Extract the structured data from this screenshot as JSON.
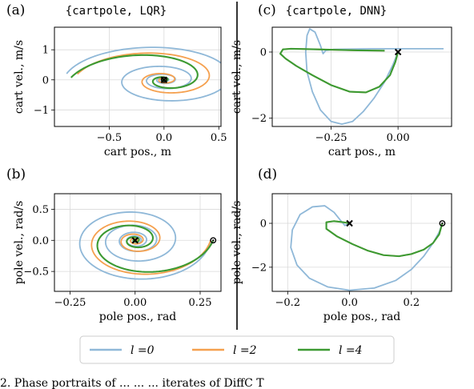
{
  "caption": "2. Phase portraits of ... ... ... iterates of DiffC T",
  "legend": {
    "placement": "bottom-center",
    "entries": [
      {
        "label": "l =0",
        "color": "#8fb8d8"
      },
      {
        "label": "l =2",
        "color": "#f5a04e"
      },
      {
        "label": "l =4",
        "color": "#3c9a32"
      }
    ]
  },
  "chart_data": [
    {
      "id": "a",
      "type": "line",
      "panel_label": "(a)",
      "title": "{cartpole, LQR}",
      "xlabel": "cart pos., m",
      "ylabel": "cart vel., m/s",
      "xlim": [
        -1.0,
        0.52
      ],
      "ylim": [
        -1.55,
        1.75
      ],
      "xticks": [
        -0.5,
        0.0,
        0.5
      ],
      "xtick_labels": [
        "−0.5",
        "0.0",
        "0.5"
      ],
      "yticks": [
        -1,
        0,
        1
      ],
      "ytick_labels": [
        "−1",
        "0",
        "1"
      ],
      "grid": true,
      "series": [
        {
          "name": "l =0",
          "color": "#8fb8d8",
          "spiral": {
            "cx": 0.0,
            "cy": 0.0,
            "r0": 0.9,
            "s": 1.45,
            "decay": 0.14,
            "turns": 4.5,
            "start": 3.3
          }
        },
        {
          "name": "l =2",
          "color": "#f5a04e",
          "spiral": {
            "cx": 0.0,
            "cy": 0.0,
            "r0": 0.8,
            "s": 1.5,
            "decay": 0.23,
            "turns": 4.0,
            "start": 3.3
          }
        },
        {
          "name": "l =4",
          "color": "#3c9a32",
          "spiral": {
            "cx": 0.0,
            "cy": 0.0,
            "r0": 0.85,
            "s": 1.55,
            "decay": 0.35,
            "turns": 3.5,
            "start": 3.2
          }
        }
      ],
      "markers": [
        {
          "x": 0.0,
          "y": 0.0,
          "kind": "x"
        },
        {
          "x": 0.0,
          "y": 0.0,
          "kind": "circle"
        }
      ]
    },
    {
      "id": "c",
      "type": "line",
      "panel_label": "(c)",
      "title": "{cartpole, DNN}",
      "xlabel": "cart pos., m",
      "ylabel": "cart vel., m/s",
      "xlim": [
        -0.47,
        0.2
      ],
      "ylim": [
        -2.25,
        0.75
      ],
      "xticks": [
        -0.25,
        0.0
      ],
      "xtick_labels": [
        "−0.25",
        "0.00"
      ],
      "yticks": [
        -2,
        0
      ],
      "ytick_labels": [
        "−2",
        "0"
      ],
      "grid": true,
      "series": [
        {
          "name": "l =0",
          "color": "#8fb8d8",
          "points": [
            [
              0.0,
              0.0
            ],
            [
              -0.02,
              -0.4
            ],
            [
              -0.05,
              -0.9
            ],
            [
              -0.09,
              -1.4
            ],
            [
              -0.13,
              -1.8
            ],
            [
              -0.17,
              -2.1
            ],
            [
              -0.21,
              -2.18
            ],
            [
              -0.25,
              -2.1
            ],
            [
              -0.29,
              -1.75
            ],
            [
              -0.32,
              -1.2
            ],
            [
              -0.34,
              -0.6
            ],
            [
              -0.345,
              0.0
            ],
            [
              -0.34,
              0.5
            ],
            [
              -0.33,
              0.7
            ],
            [
              -0.31,
              0.6
            ],
            [
              -0.29,
              0.2
            ],
            [
              -0.28,
              -0.05
            ],
            [
              -0.27,
              0.05
            ],
            [
              -0.24,
              0.08
            ],
            [
              -0.1,
              0.1
            ],
            [
              0.05,
              0.1
            ],
            [
              0.17,
              0.1
            ]
          ]
        },
        {
          "name": "l =2",
          "color": "#f5a04e",
          "points": [
            [
              0.0,
              0.0
            ],
            [
              -0.01,
              -0.3
            ],
            [
              -0.03,
              -0.7
            ],
            [
              -0.07,
              -1.05
            ],
            [
              -0.12,
              -1.22
            ],
            [
              -0.18,
              -1.2
            ],
            [
              -0.25,
              -1.0
            ],
            [
              -0.32,
              -0.7
            ],
            [
              -0.38,
              -0.42
            ],
            [
              -0.42,
              -0.2
            ],
            [
              -0.44,
              -0.05
            ],
            [
              -0.43,
              0.08
            ],
            [
              -0.4,
              0.1
            ],
            [
              -0.3,
              0.08
            ],
            [
              -0.15,
              0.05
            ],
            [
              -0.05,
              0.04
            ]
          ]
        },
        {
          "name": "l =4",
          "color": "#3c9a32",
          "points": [
            [
              0.0,
              0.0
            ],
            [
              -0.01,
              -0.3
            ],
            [
              -0.03,
              -0.7
            ],
            [
              -0.07,
              -1.05
            ],
            [
              -0.12,
              -1.22
            ],
            [
              -0.18,
              -1.2
            ],
            [
              -0.25,
              -1.0
            ],
            [
              -0.32,
              -0.7
            ],
            [
              -0.38,
              -0.42
            ],
            [
              -0.42,
              -0.2
            ],
            [
              -0.44,
              -0.05
            ],
            [
              -0.43,
              0.08
            ],
            [
              -0.4,
              0.1
            ],
            [
              -0.3,
              0.08
            ],
            [
              -0.15,
              0.05
            ],
            [
              -0.05,
              0.04
            ]
          ]
        }
      ],
      "markers": [
        {
          "x": 0.0,
          "y": 0.0,
          "kind": "x"
        }
      ]
    },
    {
      "id": "b",
      "type": "line",
      "panel_label": "(b)",
      "title": "",
      "xlabel": "pole pos., rad",
      "ylabel": "pole vel., rad/s",
      "xlim": [
        -0.31,
        0.33
      ],
      "ylim": [
        -0.82,
        0.75
      ],
      "xticks": [
        -0.25,
        0.0,
        0.25
      ],
      "xtick_labels": [
        "−0.25",
        "0.00",
        "0.25"
      ],
      "yticks": [
        -0.5,
        0.0,
        0.5
      ],
      "ytick_labels": [
        "−0.5",
        "0.0",
        "0.5"
      ],
      "grid": true,
      "series": [
        {
          "name": "l =0",
          "color": "#8fb8d8",
          "spiral": {
            "cx": 0.0,
            "cy": 0.0,
            "r0": 0.29,
            "s": 2.5,
            "decay": 0.1,
            "turns": 5.0,
            "start": 0.0
          }
        },
        {
          "name": "l =2",
          "color": "#f5a04e",
          "spiral": {
            "cx": 0.0,
            "cy": 0.0,
            "r0": 0.29,
            "s": 2.45,
            "decay": 0.18,
            "turns": 4.5,
            "start": 0.0
          }
        },
        {
          "name": "l =4",
          "color": "#3c9a32",
          "spiral": {
            "cx": 0.0,
            "cy": 0.0,
            "r0": 0.3,
            "s": 2.4,
            "decay": 0.24,
            "turns": 4.0,
            "start": 0.0
          }
        }
      ],
      "markers": [
        {
          "x": 0.3,
          "y": 0.0,
          "kind": "circle"
        },
        {
          "x": 0.0,
          "y": 0.0,
          "kind": "x"
        }
      ]
    },
    {
      "id": "d",
      "type": "line",
      "panel_label": "(d)",
      "title": "",
      "xlabel": "pole pos., rad",
      "ylabel": "pole vel., rad/s",
      "xlim": [
        -0.25,
        0.33
      ],
      "ylim": [
        -3.1,
        1.35
      ],
      "xticks": [
        -0.2,
        0.0,
        0.2
      ],
      "xtick_labels": [
        "−0.2",
        "0.0",
        "0.2"
      ],
      "yticks": [
        -2,
        0
      ],
      "ytick_labels": [
        "−2",
        "0"
      ],
      "grid": true,
      "series": [
        {
          "name": "l =0",
          "color": "#8fb8d8",
          "points": [
            [
              0.3,
              0.0
            ],
            [
              0.29,
              -0.4
            ],
            [
              0.27,
              -0.9
            ],
            [
              0.24,
              -1.5
            ],
            [
              0.2,
              -2.1
            ],
            [
              0.15,
              -2.6
            ],
            [
              0.08,
              -2.95
            ],
            [
              0.0,
              -3.05
            ],
            [
              -0.07,
              -2.9
            ],
            [
              -0.13,
              -2.5
            ],
            [
              -0.17,
              -1.9
            ],
            [
              -0.19,
              -1.1
            ],
            [
              -0.185,
              -0.3
            ],
            [
              -0.16,
              0.4
            ],
            [
              -0.12,
              0.75
            ],
            [
              -0.08,
              0.8
            ],
            [
              -0.05,
              0.5
            ],
            [
              -0.03,
              0.15
            ],
            [
              -0.015,
              -0.1
            ],
            [
              0.0,
              0.0
            ]
          ]
        },
        {
          "name": "l =2",
          "color": "#f5a04e",
          "points": [
            [
              0.3,
              0.0
            ],
            [
              0.29,
              -0.5
            ],
            [
              0.27,
              -0.9
            ],
            [
              0.24,
              -1.2
            ],
            [
              0.2,
              -1.4
            ],
            [
              0.16,
              -1.5
            ],
            [
              0.11,
              -1.45
            ],
            [
              0.06,
              -1.25
            ],
            [
              0.01,
              -0.95
            ],
            [
              -0.04,
              -0.6
            ],
            [
              -0.075,
              -0.25
            ],
            [
              -0.075,
              0.05
            ],
            [
              -0.05,
              0.1
            ],
            [
              -0.02,
              0.05
            ],
            [
              0.0,
              0.0
            ]
          ]
        },
        {
          "name": "l =4",
          "color": "#3c9a32",
          "points": [
            [
              0.3,
              0.0
            ],
            [
              0.29,
              -0.5
            ],
            [
              0.27,
              -0.9
            ],
            [
              0.24,
              -1.2
            ],
            [
              0.2,
              -1.4
            ],
            [
              0.16,
              -1.5
            ],
            [
              0.11,
              -1.45
            ],
            [
              0.06,
              -1.25
            ],
            [
              0.01,
              -0.95
            ],
            [
              -0.04,
              -0.6
            ],
            [
              -0.075,
              -0.25
            ],
            [
              -0.075,
              0.05
            ],
            [
              -0.05,
              0.1
            ],
            [
              -0.02,
              0.05
            ],
            [
              0.0,
              0.0
            ]
          ]
        }
      ],
      "markers": [
        {
          "x": 0.3,
          "y": 0.0,
          "kind": "circle"
        },
        {
          "x": 0.0,
          "y": 0.0,
          "kind": "x"
        }
      ]
    }
  ]
}
